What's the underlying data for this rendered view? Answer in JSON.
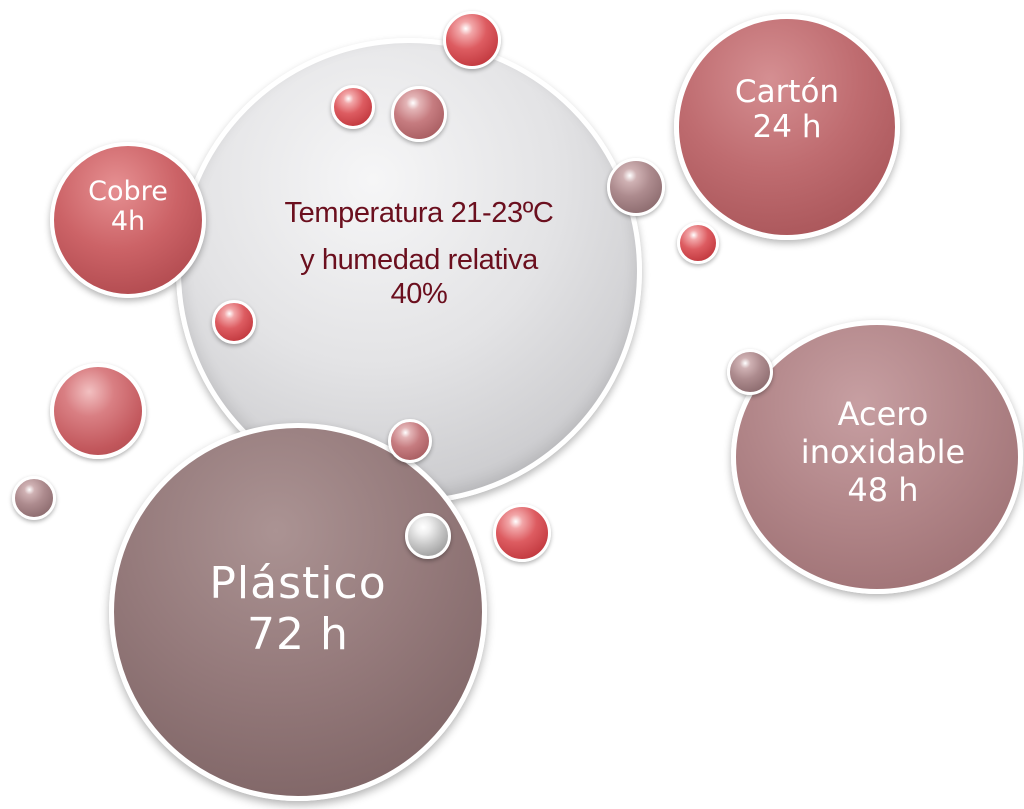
{
  "center": {
    "line1": "Temperatura 21-23ºC",
    "line2": "y humedad relativa",
    "line3": "40%"
  },
  "materials": [
    {
      "name": "Cobre",
      "duration": "4h",
      "color": "#c65a5f"
    },
    {
      "name": "Cartón",
      "duration": "24 h",
      "color": "#b9666a"
    },
    {
      "name_line1": "Acero",
      "name_line2": "inoxidable",
      "duration": "48 h",
      "color": "#a97b7e"
    },
    {
      "name": "Plástico",
      "duration": "72 h",
      "color": "#8a7070"
    }
  ],
  "colors": {
    "center_text": "#6b0f1e",
    "center_fill": "#dcdcde",
    "bubble_text": "#ffffff"
  }
}
